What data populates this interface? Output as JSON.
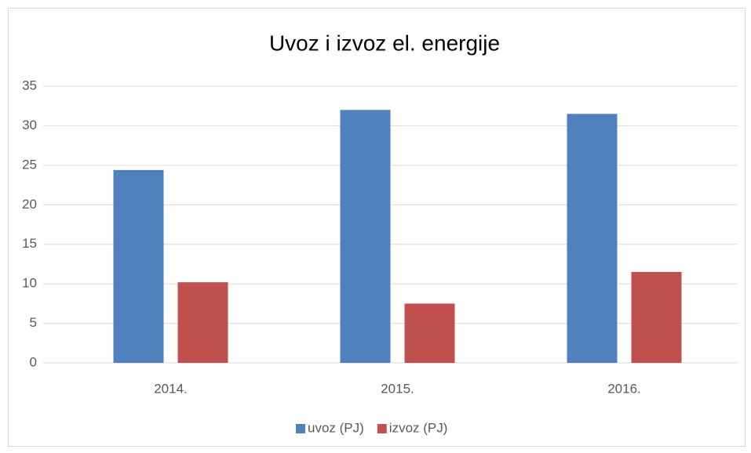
{
  "chart_data": {
    "type": "bar",
    "title": "Uvoz i izvoz el. energije",
    "categories": [
      "2014.",
      "2015.",
      "2016."
    ],
    "series": [
      {
        "name": "uvoz (PJ)",
        "color": "#4f81bd",
        "values": [
          24.4,
          32.0,
          31.5
        ]
      },
      {
        "name": "izvoz (PJ)",
        "color": "#c0504d",
        "values": [
          10.2,
          7.5,
          11.5
        ]
      }
    ],
    "ylim": [
      0,
      35
    ],
    "yticks": [
      0,
      5,
      10,
      15,
      20,
      25,
      30,
      35
    ],
    "grid": true,
    "legend": "bottom"
  }
}
